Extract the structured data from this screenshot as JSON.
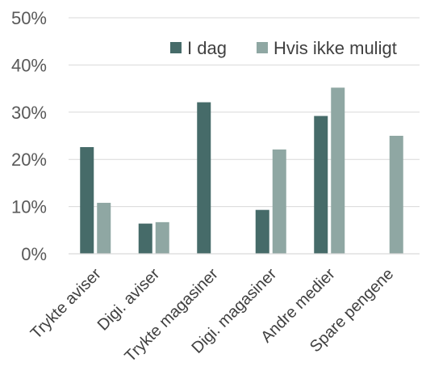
{
  "chart_data": {
    "type": "bar",
    "title": "",
    "xlabel": "",
    "ylabel": "",
    "ylim": [
      0,
      50
    ],
    "yticks": [
      0,
      10,
      20,
      30,
      40,
      50
    ],
    "ytick_labels": [
      "0%",
      "10%",
      "20%",
      "30%",
      "40%",
      "50%"
    ],
    "grid": true,
    "legend_position": "top-right",
    "categories": [
      "Trykte aviser",
      "Digi. aviser",
      "Trykte magasiner",
      "Digi. magasiner",
      "Andre medier",
      "Spare pengene"
    ],
    "series": [
      {
        "name": "I dag",
        "color": "#466b69",
        "values": [
          22.6,
          6.4,
          32.1,
          9.3,
          29.2,
          0
        ]
      },
      {
        "name": "Hvis ikke muligt",
        "color": "#8fa7a3",
        "values": [
          10.8,
          6.7,
          0,
          22.1,
          35.2,
          25.0
        ]
      }
    ]
  }
}
